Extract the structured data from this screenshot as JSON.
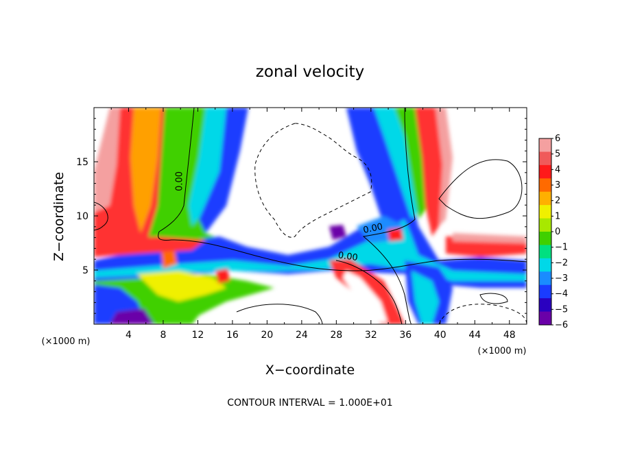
{
  "chart_data": {
    "type": "heatmap",
    "title": "zonal velocity",
    "xlabel": "X−coordinate",
    "ylabel": "Z−coordinate",
    "x_unit": "(×1000 m)",
    "z_unit": "(×1000 m)",
    "xlim": [
      0,
      50
    ],
    "ylim": [
      0,
      20
    ],
    "x_ticks": [
      4,
      8,
      12,
      16,
      20,
      24,
      28,
      32,
      36,
      40,
      44,
      48
    ],
    "x_tick_labels": [
      "4",
      "8",
      "12",
      "16",
      "20",
      "24",
      "28",
      "32",
      "36",
      "40",
      "44",
      "48"
    ],
    "y_ticks": [
      5,
      10,
      15
    ],
    "y_tick_labels": [
      "5",
      "10",
      "15"
    ],
    "colorbar": {
      "levels": [
        6,
        5,
        4,
        3,
        2,
        1,
        0,
        -1,
        -2,
        -3,
        -4,
        -5,
        -6
      ],
      "labels": [
        "6",
        "5",
        "4",
        "3",
        "2",
        "1",
        "0",
        "−1",
        "−2",
        "−3",
        "−4",
        "−5",
        "−6"
      ],
      "colors": [
        "#f4a0a0",
        "#f05a5a",
        "#ff1a1a",
        "#ff6a00",
        "#ffb000",
        "#f0f000",
        "#a8e800",
        "#40d000",
        "#00e080",
        "#00d8e8",
        "#1a8cff",
        "#1a3cff",
        "#2a00c0",
        "#6a00a8"
      ]
    },
    "contour_labels": [
      {
        "text": "0.00",
        "x": 10.2,
        "z": 13.2
      },
      {
        "text": "0.00",
        "x": 32.3,
        "z": 8.6
      },
      {
        "text": "0.00",
        "x": 29.3,
        "z": 6.0
      }
    ],
    "annotation": "CONTOUR INTERVAL = 1.000E+01"
  }
}
